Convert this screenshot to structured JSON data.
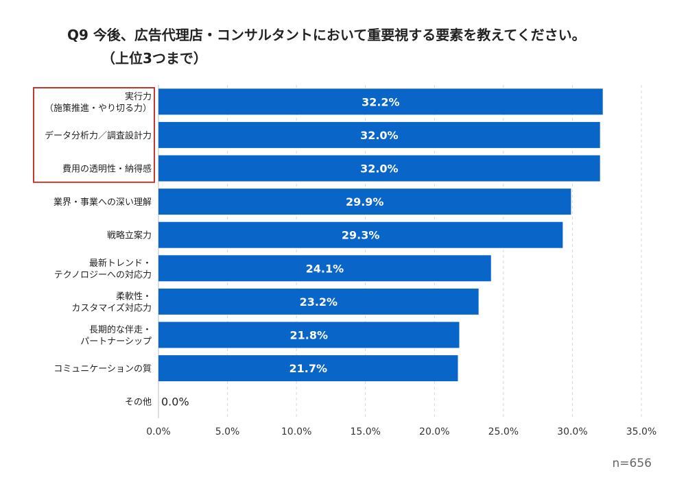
{
  "title_line1": "Q9 今後、広告代理店・コンサルタントにおいて重要視する要素を教えてください。",
  "title_line2": "（上位3つまで）",
  "sample_size": "n=656",
  "colors": {
    "bar": "#0a65c8",
    "highlight_box": "#c0392b",
    "grid": "#d9d9d9"
  },
  "chart_data": {
    "type": "bar",
    "orientation": "horizontal",
    "categories": [
      [
        "実行力",
        "（施策推進・やり切る力）"
      ],
      [
        "データ分析力／調査設計力"
      ],
      [
        "費用の透明性・納得感"
      ],
      [
        "業界・事業への深い理解"
      ],
      [
        "戦略立案力"
      ],
      [
        "最新トレンド・",
        "テクノロジーへの対応力"
      ],
      [
        "柔軟性・",
        "カスタマイズ対応力"
      ],
      [
        "長期的な伴走・",
        "パートナーシップ"
      ],
      [
        "コミュニケーションの質"
      ],
      [
        "その他"
      ]
    ],
    "values": [
      32.2,
      32.0,
      32.0,
      29.9,
      29.3,
      24.1,
      23.2,
      21.8,
      21.7,
      0.0
    ],
    "value_labels": [
      "32.2%",
      "32.0%",
      "32.0%",
      "29.9%",
      "29.3%",
      "24.1%",
      "23.2%",
      "21.8%",
      "21.7%",
      "0.0%"
    ],
    "xlim": [
      0,
      35
    ],
    "xticks": [
      "0.0%",
      "5.0%",
      "10.0%",
      "15.0%",
      "20.0%",
      "25.0%",
      "30.0%",
      "35.0%"
    ],
    "xtick_values": [
      0,
      5,
      10,
      15,
      20,
      25,
      30,
      35
    ],
    "grid": "vertical dashed",
    "highlighted_categories": [
      0,
      1,
      2
    ]
  }
}
